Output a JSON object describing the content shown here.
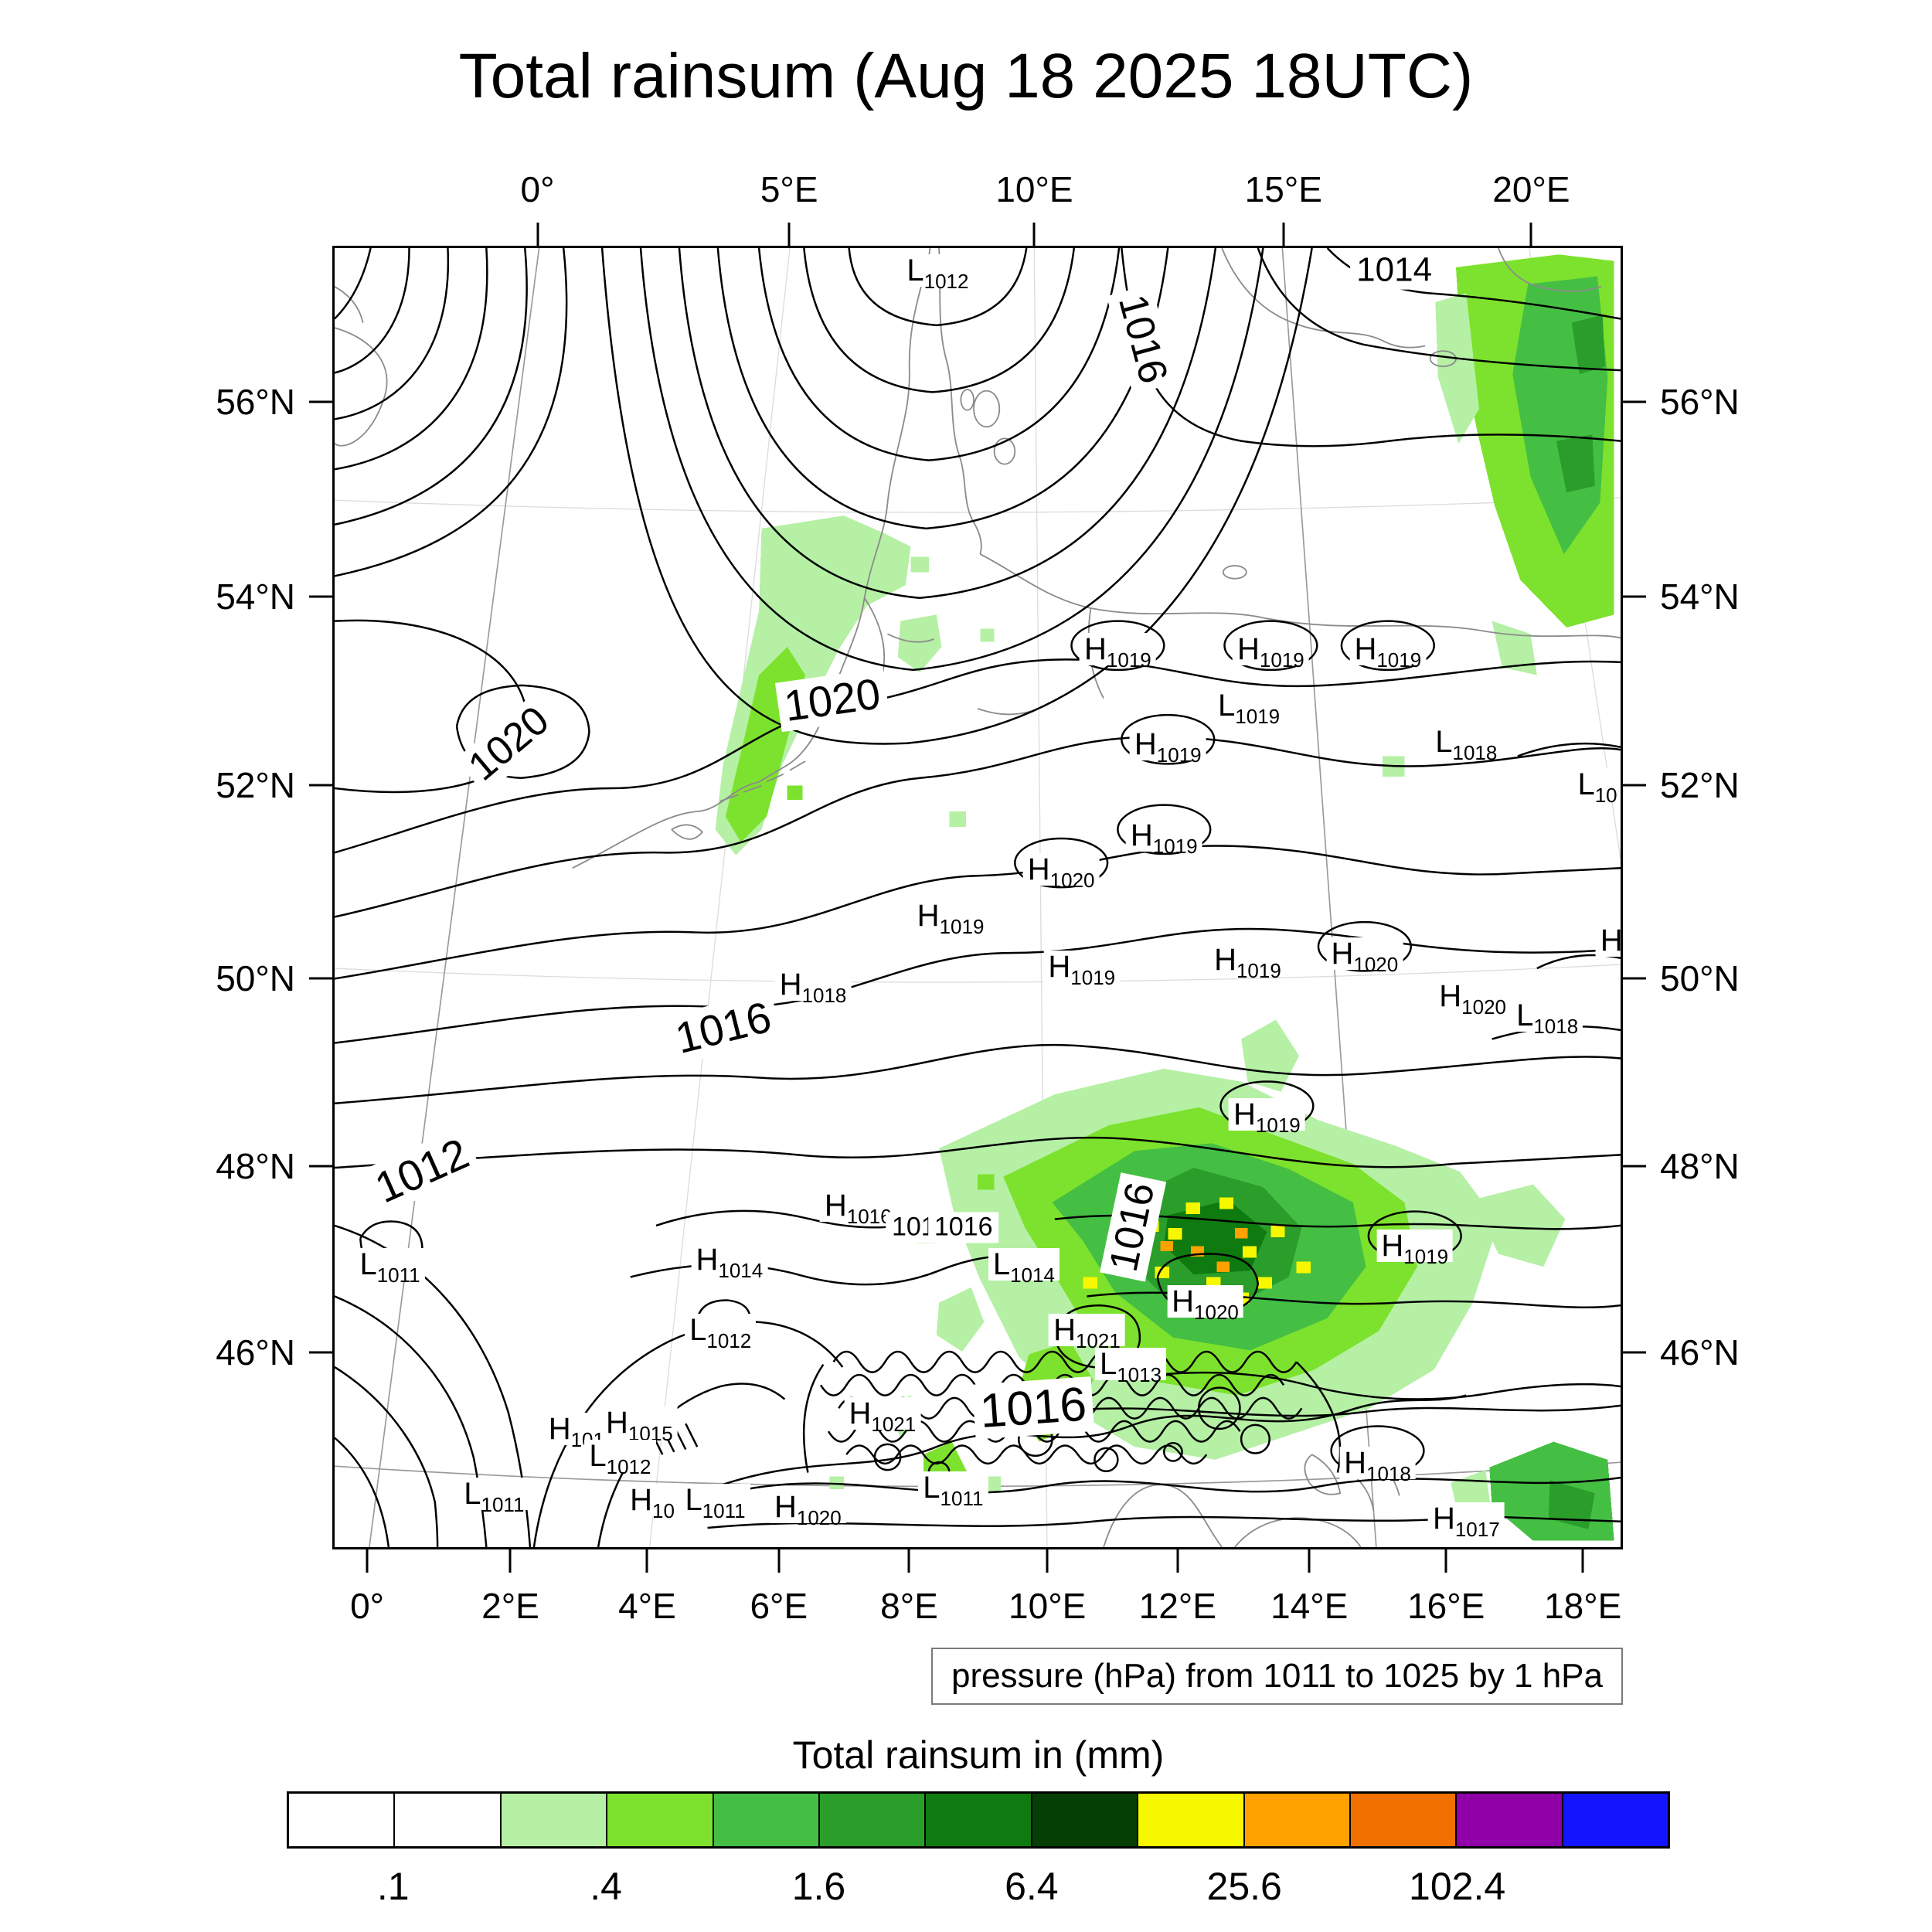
{
  "chart_data": {
    "type": "heatmap",
    "title": "Total rainsum (Aug 18 2025 18UTC)",
    "isobar_note": "pressure (hPa) from 1011 to 1025 by 1 hPa",
    "axes": {
      "top": [
        {
          "label": "0°",
          "pos": 15.9
        },
        {
          "label": "5°E",
          "pos": 35.4
        },
        {
          "label": "10°E",
          "pos": 54.4
        },
        {
          "label": "15°E",
          "pos": 73.7
        },
        {
          "label": "20°E",
          "pos": 92.9
        }
      ],
      "bottom": [
        {
          "label": "0°",
          "pos": 2.7
        },
        {
          "label": "2°E",
          "pos": 13.8
        },
        {
          "label": "4°E",
          "pos": 24.4
        },
        {
          "label": "6°E",
          "pos": 34.6
        },
        {
          "label": "8°E",
          "pos": 44.7
        },
        {
          "label": "10°E",
          "pos": 55.4
        },
        {
          "label": "12°E",
          "pos": 65.5
        },
        {
          "label": "14°E",
          "pos": 75.7
        },
        {
          "label": "16°E",
          "pos": 86.3
        },
        {
          "label": "18°E",
          "pos": 96.9
        }
      ],
      "left": [
        {
          "label": "56°N",
          "pos": 12.0
        },
        {
          "label": "54°N",
          "pos": 26.9
        },
        {
          "label": "52°N",
          "pos": 41.4
        },
        {
          "label": "50°N",
          "pos": 56.2
        },
        {
          "label": "48°N",
          "pos": 70.6
        },
        {
          "label": "46°N",
          "pos": 84.9
        }
      ],
      "right": [
        {
          "label": "56°N",
          "pos": 12.0
        },
        {
          "label": "54°N",
          "pos": 26.9
        },
        {
          "label": "52°N",
          "pos": 41.4
        },
        {
          "label": "50°N",
          "pos": 56.2
        },
        {
          "label": "48°N",
          "pos": 70.6
        },
        {
          "label": "46°N",
          "pos": 84.9
        }
      ]
    },
    "pressure_centers": [
      {
        "letter": "L",
        "value": "1012",
        "x": 46.9,
        "y": 1.7
      },
      {
        "letter": "H",
        "value": "1019",
        "x": 60.9,
        "y": 30.9
      },
      {
        "letter": "H",
        "value": "1019",
        "x": 72.8,
        "y": 30.9
      },
      {
        "letter": "H",
        "value": "1019",
        "x": 81.9,
        "y": 30.9
      },
      {
        "letter": "L",
        "value": "1019",
        "x": 71.1,
        "y": 35.2
      },
      {
        "letter": "H",
        "value": "1019",
        "x": 64.8,
        "y": 38.2
      },
      {
        "letter": "L",
        "value": "1018",
        "x": 88.0,
        "y": 38.0
      },
      {
        "letter": "L",
        "value": "10",
        "x": 98.2,
        "y": 41.3
      },
      {
        "letter": "H",
        "value": "1019",
        "x": 64.5,
        "y": 45.2
      },
      {
        "letter": "H",
        "value": "1020",
        "x": 56.5,
        "y": 47.8
      },
      {
        "letter": "H",
        "value": "1019",
        "x": 47.9,
        "y": 51.4
      },
      {
        "letter": "H",
        "value": "1018",
        "x": 37.2,
        "y": 56.7
      },
      {
        "letter": "H",
        "value": "1019",
        "x": 58.1,
        "y": 55.3
      },
      {
        "letter": "H",
        "value": "1019",
        "x": 71.0,
        "y": 54.8
      },
      {
        "letter": "H",
        "value": "1020",
        "x": 80.1,
        "y": 54.3
      },
      {
        "letter": "H",
        "value": "1020",
        "x": 88.5,
        "y": 57.6
      },
      {
        "letter": "L",
        "value": "1018",
        "x": 94.3,
        "y": 59.1
      },
      {
        "letter": "H",
        "value": "",
        "x": 99.3,
        "y": 53.3
      },
      {
        "letter": "L",
        "value": "1011",
        "x": 4.3,
        "y": 78.2
      },
      {
        "letter": "H",
        "value": "1019",
        "x": 72.5,
        "y": 66.7
      },
      {
        "letter": "H",
        "value": "1016",
        "x": 40.7,
        "y": 73.7
      },
      {
        "letter": "L",
        "value": "1014",
        "x": 53.6,
        "y": 78.2
      },
      {
        "letter": "H",
        "value": "1014",
        "x": 30.7,
        "y": 77.9
      },
      {
        "letter": "H",
        "value": "1019",
        "x": 84.0,
        "y": 76.8
      },
      {
        "letter": "L",
        "value": "1012",
        "x": 30.0,
        "y": 83.3
      },
      {
        "letter": "H",
        "value": "1021",
        "x": 58.5,
        "y": 83.3
      },
      {
        "letter": "H",
        "value": "1020",
        "x": 67.7,
        "y": 81.1
      },
      {
        "letter": "L",
        "value": "1013",
        "x": 61.9,
        "y": 85.9
      },
      {
        "letter": "H",
        "value": "101",
        "x": 18.8,
        "y": 90.9
      },
      {
        "letter": "H",
        "value": "1015",
        "x": 23.7,
        "y": 90.4
      },
      {
        "letter": "L",
        "value": "1012",
        "x": 22.2,
        "y": 93.0
      },
      {
        "letter": "H",
        "value": "1021",
        "x": 42.6,
        "y": 89.7
      },
      {
        "letter": "L",
        "value": "1011",
        "x": 12.4,
        "y": 95.9
      },
      {
        "letter": "H",
        "value": "10",
        "x": 24.7,
        "y": 96.4
      },
      {
        "letter": "L",
        "value": "1011",
        "x": 29.6,
        "y": 96.4
      },
      {
        "letter": "H",
        "value": "1020",
        "x": 36.8,
        "y": 96.9
      },
      {
        "letter": "L",
        "value": "1011",
        "x": 48.1,
        "y": 95.4
      },
      {
        "letter": "H",
        "value": "1018",
        "x": 81.1,
        "y": 93.5
      },
      {
        "letter": "H",
        "value": "1017",
        "x": 88.0,
        "y": 97.8
      }
    ],
    "contour_labels": [
      {
        "text": "1014",
        "x": 82.4,
        "y": 1.7,
        "rot": 0,
        "size": 44
      },
      {
        "text": "1016",
        "x": 62.8,
        "y": 7.0,
        "rot": 75,
        "size": 52
      },
      {
        "text": "1020",
        "x": 13.6,
        "y": 38.2,
        "rot": -40,
        "size": 52
      },
      {
        "text": "1020",
        "x": 38.7,
        "y": 34.8,
        "rot": -8,
        "size": 56
      },
      {
        "text": "1016",
        "x": 30.2,
        "y": 60.0,
        "rot": -14,
        "size": 56
      },
      {
        "text": "1012",
        "x": 6.8,
        "y": 71.0,
        "rot": -24,
        "size": 56
      },
      {
        "text": "1013",
        "x": 45.6,
        "y": 75.4,
        "rot": 0,
        "size": 34
      },
      {
        "text": "1016",
        "x": 48.9,
        "y": 75.4,
        "rot": 0,
        "size": 34
      },
      {
        "text": "1016",
        "x": 62.1,
        "y": 75.4,
        "rot": -78,
        "size": 52
      },
      {
        "text": "1016",
        "x": 54.3,
        "y": 89.3,
        "rot": -4,
        "size": 62
      }
    ],
    "colorbar": {
      "title": "Total rainsum in (mm)",
      "colors": [
        "#ffffff",
        "#ffffff",
        "#b5f0a5",
        "#7de22d",
        "#44bf44",
        "#2a9d2a",
        "#0f7a0f",
        "#063f06",
        "#f7f700",
        "#ffa200",
        "#f07000",
        "#8f00a8",
        "#1414ff"
      ],
      "tick_labels": [
        ".1",
        ".4",
        "1.6",
        "6.4",
        "25.6",
        "102.4"
      ],
      "tick_cells": [
        1,
        3,
        5,
        7,
        9,
        11
      ]
    }
  }
}
